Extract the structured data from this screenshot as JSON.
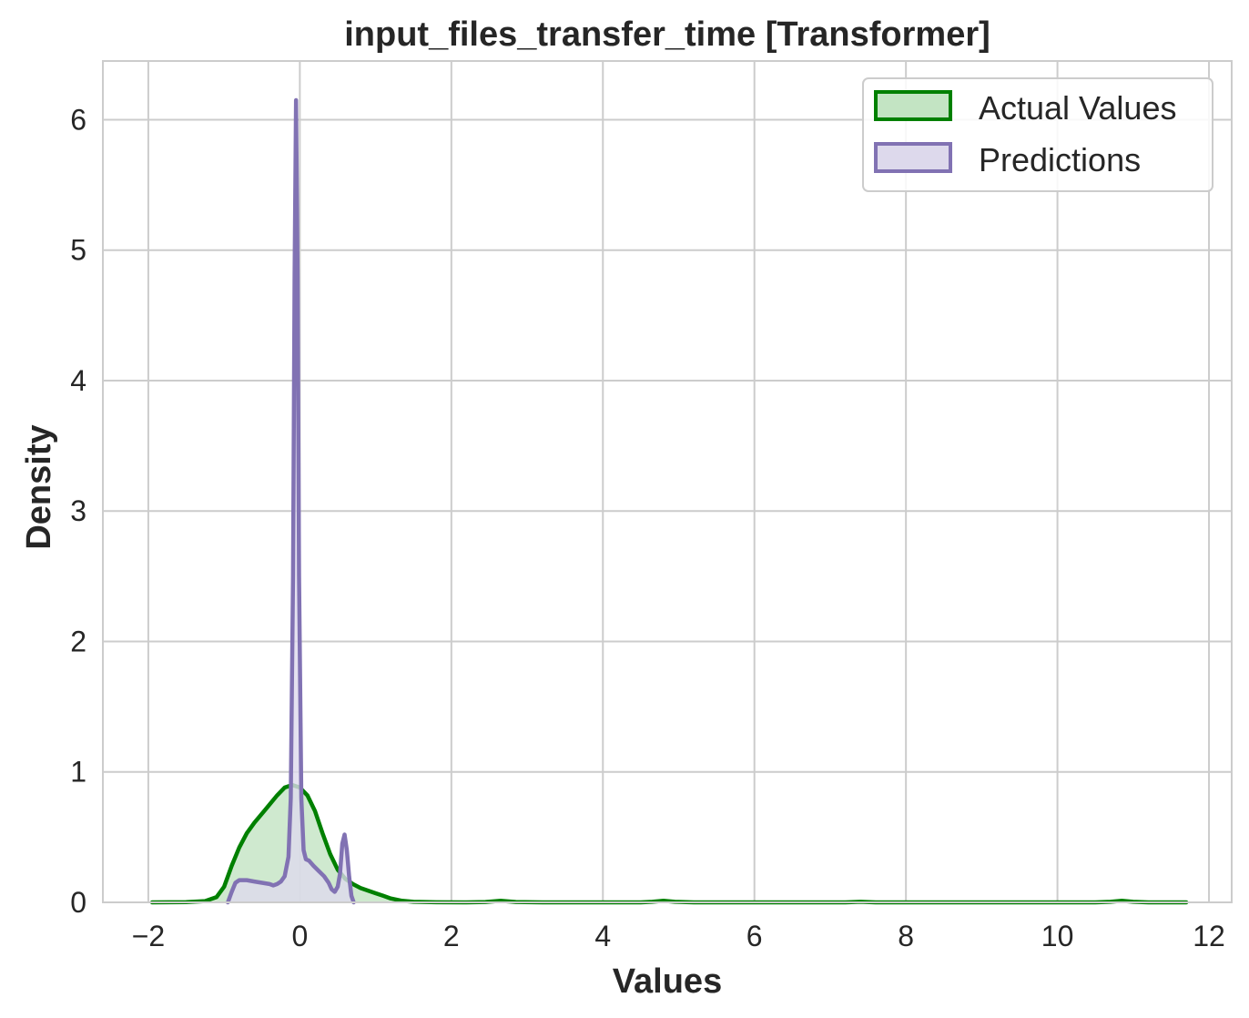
{
  "chart_data": {
    "type": "area",
    "title": "input_files_transfer_time [Transformer]",
    "xlabel": "Values",
    "ylabel": "Density",
    "xlim": [
      -2.6,
      12.3
    ],
    "ylim": [
      0,
      6.45
    ],
    "x_ticks": [
      -2,
      0,
      2,
      4,
      6,
      8,
      10,
      12
    ],
    "x_tick_labels": [
      "−2",
      "0",
      "2",
      "4",
      "6",
      "8",
      "10",
      "12"
    ],
    "y_ticks": [
      0,
      1,
      2,
      3,
      4,
      5,
      6
    ],
    "y_tick_labels": [
      "0",
      "1",
      "2",
      "3",
      "4",
      "5",
      "6"
    ],
    "grid": true,
    "legend_position": "top-right",
    "series": [
      {
        "name": "Actual Values",
        "color": "#008000",
        "fill": "#c3e4c3",
        "points": [
          [
            -1.95,
            0.0
          ],
          [
            -1.5,
            0.002
          ],
          [
            -1.25,
            0.01
          ],
          [
            -1.1,
            0.04
          ],
          [
            -1.0,
            0.12
          ],
          [
            -0.9,
            0.28
          ],
          [
            -0.8,
            0.42
          ],
          [
            -0.7,
            0.53
          ],
          [
            -0.6,
            0.61
          ],
          [
            -0.5,
            0.68
          ],
          [
            -0.4,
            0.75
          ],
          [
            -0.3,
            0.82
          ],
          [
            -0.2,
            0.88
          ],
          [
            -0.1,
            0.9
          ],
          [
            0.0,
            0.88
          ],
          [
            0.1,
            0.82
          ],
          [
            0.2,
            0.7
          ],
          [
            0.3,
            0.53
          ],
          [
            0.4,
            0.37
          ],
          [
            0.5,
            0.25
          ],
          [
            0.6,
            0.18
          ],
          [
            0.7,
            0.14
          ],
          [
            0.8,
            0.11
          ],
          [
            0.9,
            0.09
          ],
          [
            1.0,
            0.07
          ],
          [
            1.1,
            0.05
          ],
          [
            1.2,
            0.03
          ],
          [
            1.35,
            0.012
          ],
          [
            1.5,
            0.004
          ],
          [
            1.8,
            0.001
          ],
          [
            2.2,
            0.0
          ],
          [
            2.45,
            0.003
          ],
          [
            2.65,
            0.012
          ],
          [
            2.85,
            0.003
          ],
          [
            3.2,
            0.0
          ],
          [
            4.5,
            0.0
          ],
          [
            4.65,
            0.004
          ],
          [
            4.8,
            0.012
          ],
          [
            4.95,
            0.004
          ],
          [
            5.2,
            0.0
          ],
          [
            7.2,
            0.0
          ],
          [
            7.4,
            0.004
          ],
          [
            7.6,
            0.0
          ],
          [
            10.5,
            0.0
          ],
          [
            10.7,
            0.004
          ],
          [
            10.85,
            0.012
          ],
          [
            11.0,
            0.004
          ],
          [
            11.2,
            0.0
          ],
          [
            11.7,
            0.0
          ]
        ]
      },
      {
        "name": "Predictions",
        "color": "#8172b3",
        "fill": "#ddd9ec",
        "points": [
          [
            -0.95,
            0.0
          ],
          [
            -0.9,
            0.08
          ],
          [
            -0.85,
            0.15
          ],
          [
            -0.8,
            0.17
          ],
          [
            -0.7,
            0.17
          ],
          [
            -0.6,
            0.16
          ],
          [
            -0.5,
            0.15
          ],
          [
            -0.4,
            0.14
          ],
          [
            -0.35,
            0.13
          ],
          [
            -0.3,
            0.14
          ],
          [
            -0.25,
            0.16
          ],
          [
            -0.2,
            0.2
          ],
          [
            -0.15,
            0.35
          ],
          [
            -0.12,
            0.8
          ],
          [
            -0.09,
            2.5
          ],
          [
            -0.07,
            4.8
          ],
          [
            -0.05,
            6.15
          ],
          [
            -0.03,
            4.8
          ],
          [
            -0.01,
            2.5
          ],
          [
            0.02,
            0.8
          ],
          [
            0.05,
            0.4
          ],
          [
            0.08,
            0.33
          ],
          [
            0.12,
            0.32
          ],
          [
            0.18,
            0.28
          ],
          [
            0.25,
            0.24
          ],
          [
            0.32,
            0.2
          ],
          [
            0.38,
            0.15
          ],
          [
            0.42,
            0.1
          ],
          [
            0.46,
            0.08
          ],
          [
            0.5,
            0.12
          ],
          [
            0.53,
            0.22
          ],
          [
            0.56,
            0.45
          ],
          [
            0.59,
            0.52
          ],
          [
            0.62,
            0.4
          ],
          [
            0.65,
            0.2
          ],
          [
            0.68,
            0.05
          ],
          [
            0.71,
            0.0
          ]
        ]
      }
    ]
  }
}
